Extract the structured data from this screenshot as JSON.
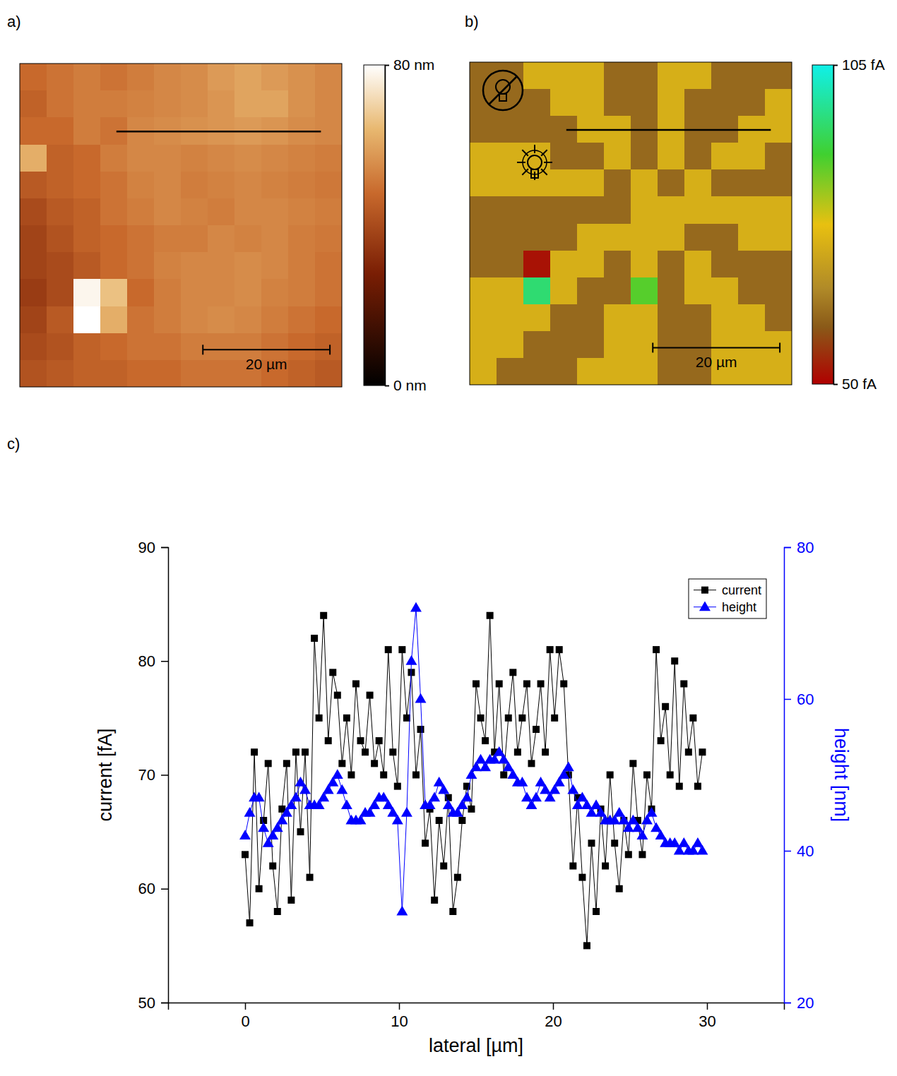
{
  "chart_data": [
    {
      "type": "heatmap",
      "panel": "a)",
      "xlim": [
        0,
        50.7
      ],
      "ylim": [
        0,
        50.7
      ],
      "cells": [
        [
          48,
          50,
          52,
          50,
          52,
          54,
          55,
          58,
          60,
          58,
          56,
          54
        ],
        [
          46,
          50,
          52,
          52,
          53,
          54,
          55,
          57,
          60,
          60,
          56,
          54
        ],
        [
          48,
          48,
          52,
          50,
          54,
          55,
          56,
          57,
          58,
          57,
          55,
          54
        ],
        [
          62,
          46,
          48,
          52,
          54,
          54,
          53,
          54,
          55,
          54,
          53,
          52
        ],
        [
          44,
          46,
          48,
          50,
          53,
          54,
          52,
          53,
          54,
          53,
          52,
          51
        ],
        [
          40,
          44,
          46,
          50,
          52,
          54,
          53,
          52,
          54,
          54,
          53,
          52
        ],
        [
          38,
          42,
          46,
          48,
          50,
          52,
          52,
          54,
          53,
          54,
          52,
          51
        ],
        [
          38,
          40,
          44,
          48,
          50,
          53,
          54,
          54,
          55,
          54,
          52,
          50
        ],
        [
          36,
          40,
          78,
          66,
          48,
          52,
          54,
          54,
          55,
          53,
          52,
          50
        ],
        [
          38,
          44,
          80,
          62,
          50,
          52,
          54,
          55,
          54,
          52,
          50,
          48
        ],
        [
          40,
          42,
          46,
          48,
          50,
          50,
          52,
          52,
          52,
          50,
          48,
          46
        ],
        [
          42,
          44,
          46,
          46,
          48,
          48,
          50,
          50,
          50,
          48,
          46,
          44
        ]
      ],
      "color_range": [
        0,
        80
      ],
      "color_ticks": [
        {
          "value": 0,
          "label": "0 nm"
        },
        {
          "value": 80,
          "label": "80 nm"
        }
      ],
      "scale_bar": {
        "length": 20,
        "label": "20 µm"
      }
    },
    {
      "type": "heatmap",
      "panel": "b)",
      "xlim": [
        0,
        50.7
      ],
      "ylim": [
        0,
        50.7
      ],
      "cells": [
        [
          62,
          62,
          74,
          74,
          74,
          62,
          62,
          74,
          74,
          62,
          62,
          62
        ],
        [
          62,
          62,
          62,
          74,
          74,
          62,
          62,
          74,
          62,
          62,
          62,
          74
        ],
        [
          62,
          62,
          62,
          62,
          74,
          74,
          62,
          74,
          62,
          62,
          74,
          74
        ],
        [
          74,
          74,
          74,
          62,
          62,
          74,
          62,
          74,
          62,
          74,
          74,
          62
        ],
        [
          74,
          74,
          74,
          74,
          74,
          62,
          74,
          62,
          74,
          62,
          62,
          62
        ],
        [
          62,
          62,
          62,
          62,
          62,
          62,
          74,
          74,
          74,
          74,
          74,
          74
        ],
        [
          62,
          62,
          62,
          62,
          74,
          74,
          74,
          74,
          62,
          62,
          74,
          74
        ],
        [
          62,
          62,
          52,
          74,
          74,
          62,
          74,
          62,
          74,
          62,
          62,
          62
        ],
        [
          74,
          74,
          95,
          74,
          62,
          62,
          88,
          62,
          74,
          74,
          62,
          62
        ],
        [
          74,
          74,
          74,
          62,
          62,
          74,
          74,
          62,
          62,
          74,
          74,
          62
        ],
        [
          74,
          74,
          62,
          62,
          62,
          74,
          74,
          62,
          62,
          74,
          74,
          74
        ],
        [
          74,
          62,
          62,
          62,
          74,
          74,
          74,
          62,
          62,
          74,
          74,
          74
        ]
      ],
      "color_range": [
        50,
        105
      ],
      "color_ticks": [
        {
          "value": 50,
          "label": "50 fA"
        },
        {
          "value": 105,
          "label": "105 fA"
        }
      ],
      "scale_bar": {
        "length": 20,
        "label": "20 µm"
      }
    },
    {
      "type": "line",
      "panel": "c)",
      "x_label": "lateral [µm]",
      "y_label": "current [fA]",
      "y2_label": "height [nm]",
      "xlim": [
        -5,
        35
      ],
      "xticks": [
        0,
        10,
        20,
        30
      ],
      "ylim": [
        50,
        90
      ],
      "yticks": [
        50,
        60,
        70,
        80,
        90
      ],
      "y2lim": [
        20,
        80
      ],
      "y2ticks": [
        20,
        40,
        60,
        80
      ],
      "legend": "upper right",
      "x": [
        0,
        0.3,
        0.6,
        0.9,
        1.2,
        1.5,
        1.8,
        2.1,
        2.4,
        2.7,
        3,
        3.3,
        3.6,
        3.9,
        4.2,
        4.5,
        4.8,
        5.1,
        5.4,
        5.7,
        6,
        6.3,
        6.6,
        6.9,
        7.2,
        7.5,
        7.8,
        8.1,
        8.4,
        8.7,
        9,
        9.3,
        9.6,
        9.9,
        10.2,
        10.5,
        10.8,
        11.1,
        11.4,
        11.7,
        12,
        12.3,
        12.6,
        12.9,
        13.2,
        13.5,
        13.8,
        14.1,
        14.4,
        14.7,
        15,
        15.3,
        15.6,
        15.9,
        16.2,
        16.5,
        16.8,
        17.1,
        17.4,
        17.7,
        18,
        18.3,
        18.6,
        18.9,
        19.2,
        19.5,
        19.8,
        20.1,
        20.4,
        20.7,
        21,
        21.3,
        21.6,
        21.9,
        22.2,
        22.5,
        22.8,
        23.1,
        23.4,
        23.7,
        24,
        24.3,
        24.6,
        24.9,
        25.2,
        25.5,
        25.8,
        26.1,
        26.4,
        26.7,
        27,
        27.3,
        27.6,
        27.9,
        28.2,
        28.5,
        28.8,
        29.1,
        29.4,
        29.7
      ],
      "series": [
        {
          "name": "current",
          "color": "#000000",
          "marker": "square",
          "line_style": "solid",
          "values": [
            63,
            57,
            72,
            60,
            66,
            71,
            62,
            58,
            67,
            71,
            59,
            72,
            65,
            72,
            61,
            82,
            75,
            84,
            73,
            79,
            77,
            71,
            75,
            70,
            78,
            73,
            72,
            77,
            71,
            73,
            70,
            81,
            72,
            69,
            81,
            75,
            79,
            70,
            74,
            64,
            67,
            59,
            66,
            62,
            68,
            58,
            61,
            66,
            69,
            67,
            78,
            75,
            73,
            84,
            72,
            78,
            70,
            75,
            79,
            72,
            75,
            78,
            71,
            74,
            78,
            72,
            81,
            75,
            81,
            78,
            70,
            62,
            68,
            61,
            55,
            64,
            58,
            67,
            62,
            70,
            64,
            60,
            66,
            63,
            71,
            66,
            63,
            70,
            67,
            81,
            73,
            76,
            70,
            80,
            69,
            78,
            72,
            75,
            69,
            72
          ]
        },
        {
          "name": "height",
          "color": "#0000ff",
          "marker": "triangle",
          "line_style": "solid",
          "axis": "y2",
          "values": [
            42,
            45,
            47,
            47,
            43,
            41,
            42,
            43,
            44,
            45,
            46,
            47,
            49,
            48,
            46,
            46,
            46,
            47,
            48,
            49,
            50,
            48,
            46,
            44,
            44,
            44,
            45,
            45,
            46,
            47,
            47,
            46,
            45,
            44,
            32,
            45,
            65,
            72,
            60,
            46,
            46,
            47,
            49,
            48,
            46,
            45,
            45,
            46,
            47,
            50,
            51,
            52,
            51,
            52,
            52,
            53,
            52,
            51,
            50,
            49,
            49,
            47,
            46,
            47,
            49,
            48,
            47,
            48,
            49,
            50,
            51,
            48,
            46,
            47,
            46,
            45,
            46,
            45,
            44,
            44,
            44,
            45,
            44,
            43,
            44,
            43,
            42,
            44,
            45,
            43,
            42,
            41,
            41,
            41,
            40,
            41,
            40,
            40,
            41,
            40
          ]
        }
      ]
    }
  ]
}
